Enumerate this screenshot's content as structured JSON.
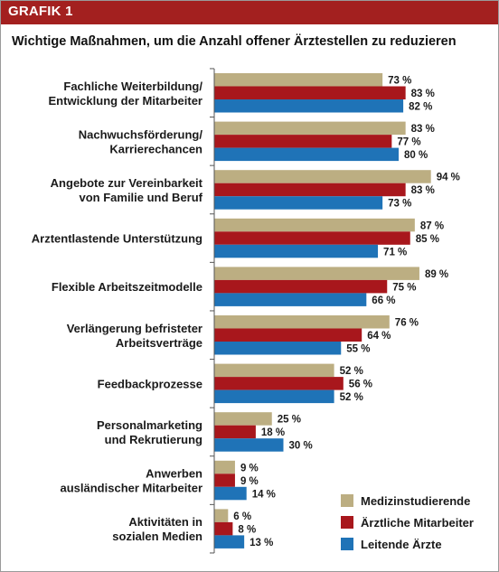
{
  "header": {
    "label": "GRAFIK 1"
  },
  "chart_data": {
    "type": "bar",
    "orientation": "horizontal",
    "title": "Wichtige Maßnahmen, um die Anzahl offener Ärztestellen zu reduzieren",
    "categories": [
      [
        "Fachliche Weiterbildung/",
        "Entwicklung der Mitarbeiter"
      ],
      [
        "Nachwuchsförderung/",
        "Karrierechancen"
      ],
      [
        "Angebote zur Vereinbarkeit",
        "von Familie und Beruf"
      ],
      [
        "Arztentlastende Unterstützung"
      ],
      [
        "Flexible Arbeitszeitmodelle"
      ],
      [
        "Verlängerung befristeter",
        "Arbeitsverträge"
      ],
      [
        "Feedbackprozesse"
      ],
      [
        "Personalmarketing",
        "und Rekrutierung"
      ],
      [
        "Anwerben",
        "ausländischer Mitarbeiter"
      ],
      [
        "Aktivitäten in",
        "sozialen Medien"
      ]
    ],
    "series": [
      {
        "name": "Medizinstudierende",
        "color": "#bcae82",
        "values": [
          73,
          83,
          94,
          87,
          89,
          76,
          52,
          25,
          9,
          6
        ]
      },
      {
        "name": "Ärztliche Mitarbeiter",
        "color": "#a8171c",
        "values": [
          83,
          77,
          83,
          85,
          75,
          64,
          56,
          18,
          9,
          8
        ]
      },
      {
        "name": "Leitende Ärzte",
        "color": "#1f73b7",
        "values": [
          82,
          80,
          73,
          71,
          66,
          55,
          52,
          30,
          14,
          13
        ]
      }
    ],
    "value_suffix": " %",
    "xlim": [
      0,
      100
    ],
    "legend_position": "bottom-right",
    "grid": false
  }
}
